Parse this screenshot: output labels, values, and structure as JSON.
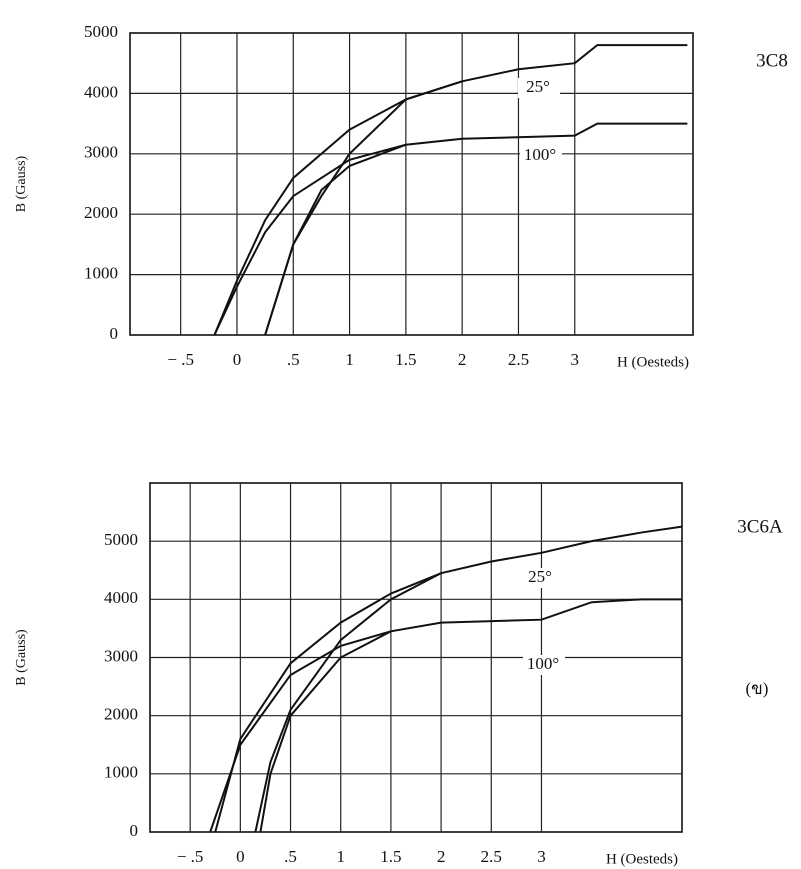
{
  "chart_data": [
    {
      "type": "line",
      "label": "3C8",
      "x_label": "H (Oesteds)",
      "y_label": "B (Gauss)",
      "xlim": [
        -0.95,
        4.05
      ],
      "ylim": [
        0,
        5000
      ],
      "xticks": [
        {
          "value": -0.5,
          "label": "− .5"
        },
        0,
        {
          "value": 0.5,
          "label": ".5"
        },
        1,
        1.5,
        2,
        2.5,
        3
      ],
      "yticks": [
        0,
        1000,
        2000,
        3000,
        4000,
        5000
      ],
      "grid": true,
      "series": [
        {
          "name": "25°",
          "color": "#111111",
          "x": [
            -0.2,
            0,
            0.25,
            0.5,
            1,
            1.5,
            2,
            2.5,
            3,
            3.2,
            4
          ],
          "values": [
            0,
            900,
            1900,
            2600,
            3400,
            3900,
            4200,
            4400,
            4500,
            4800,
            4800
          ]
        },
        {
          "color": "#111111",
          "x": [
            0.25,
            0.5,
            0.75,
            1,
            1.5,
            2
          ],
          "values": [
            0,
            1500,
            2300,
            3000,
            3900,
            4200
          ]
        },
        {
          "name": "100°",
          "color": "#111111",
          "x": [
            -0.2,
            0,
            0.25,
            0.5,
            1,
            1.5,
            2,
            3,
            3.2,
            4
          ],
          "values": [
            0,
            800,
            1700,
            2300,
            2900,
            3150,
            3250,
            3300,
            3500,
            3500
          ]
        },
        {
          "color": "#111111",
          "x": [
            0.25,
            0.5,
            0.75,
            1,
            1.5
          ],
          "values": [
            0,
            1500,
            2400,
            2800,
            3150
          ]
        }
      ]
    },
    {
      "type": "line",
      "label": "3C6A",
      "note": "(ข)",
      "x_label": "H (Oesteds)",
      "y_label": "B (Gauss)",
      "xlim": [
        -0.9,
        4.4
      ],
      "ylim": [
        0,
        6000
      ],
      "xticks": [
        {
          "value": -0.5,
          "label": "− .5"
        },
        0,
        {
          "value": 0.5,
          "label": ".5"
        },
        1,
        1.5,
        2,
        2.5,
        3
      ],
      "yticks": [
        0,
        1000,
        2000,
        3000,
        4000,
        5000
      ],
      "grid": true,
      "series": [
        {
          "name": "25°",
          "color": "#111111",
          "x": [
            -0.25,
            0,
            0.5,
            1,
            1.5,
            2,
            2.5,
            3,
            3.5,
            4,
            4.4
          ],
          "values": [
            0,
            1600,
            2900,
            3600,
            4100,
            4450,
            4650,
            4800,
            5000,
            5150,
            5250
          ]
        },
        {
          "color": "#111111",
          "x": [
            0.15,
            0.3,
            0.5,
            1,
            1.5,
            2
          ],
          "values": [
            0,
            1200,
            2100,
            3300,
            4000,
            4450
          ]
        },
        {
          "name": "100°",
          "color": "#111111",
          "x": [
            -0.3,
            0,
            0.5,
            1,
            1.5,
            2,
            3,
            3.5,
            4,
            4.4
          ],
          "values": [
            0,
            1500,
            2700,
            3200,
            3450,
            3600,
            3650,
            3950,
            4000,
            4000
          ]
        },
        {
          "color": "#111111",
          "x": [
            0.2,
            0.3,
            0.5,
            1,
            1.5
          ],
          "values": [
            0,
            1000,
            2000,
            3000,
            3450
          ]
        }
      ]
    }
  ]
}
